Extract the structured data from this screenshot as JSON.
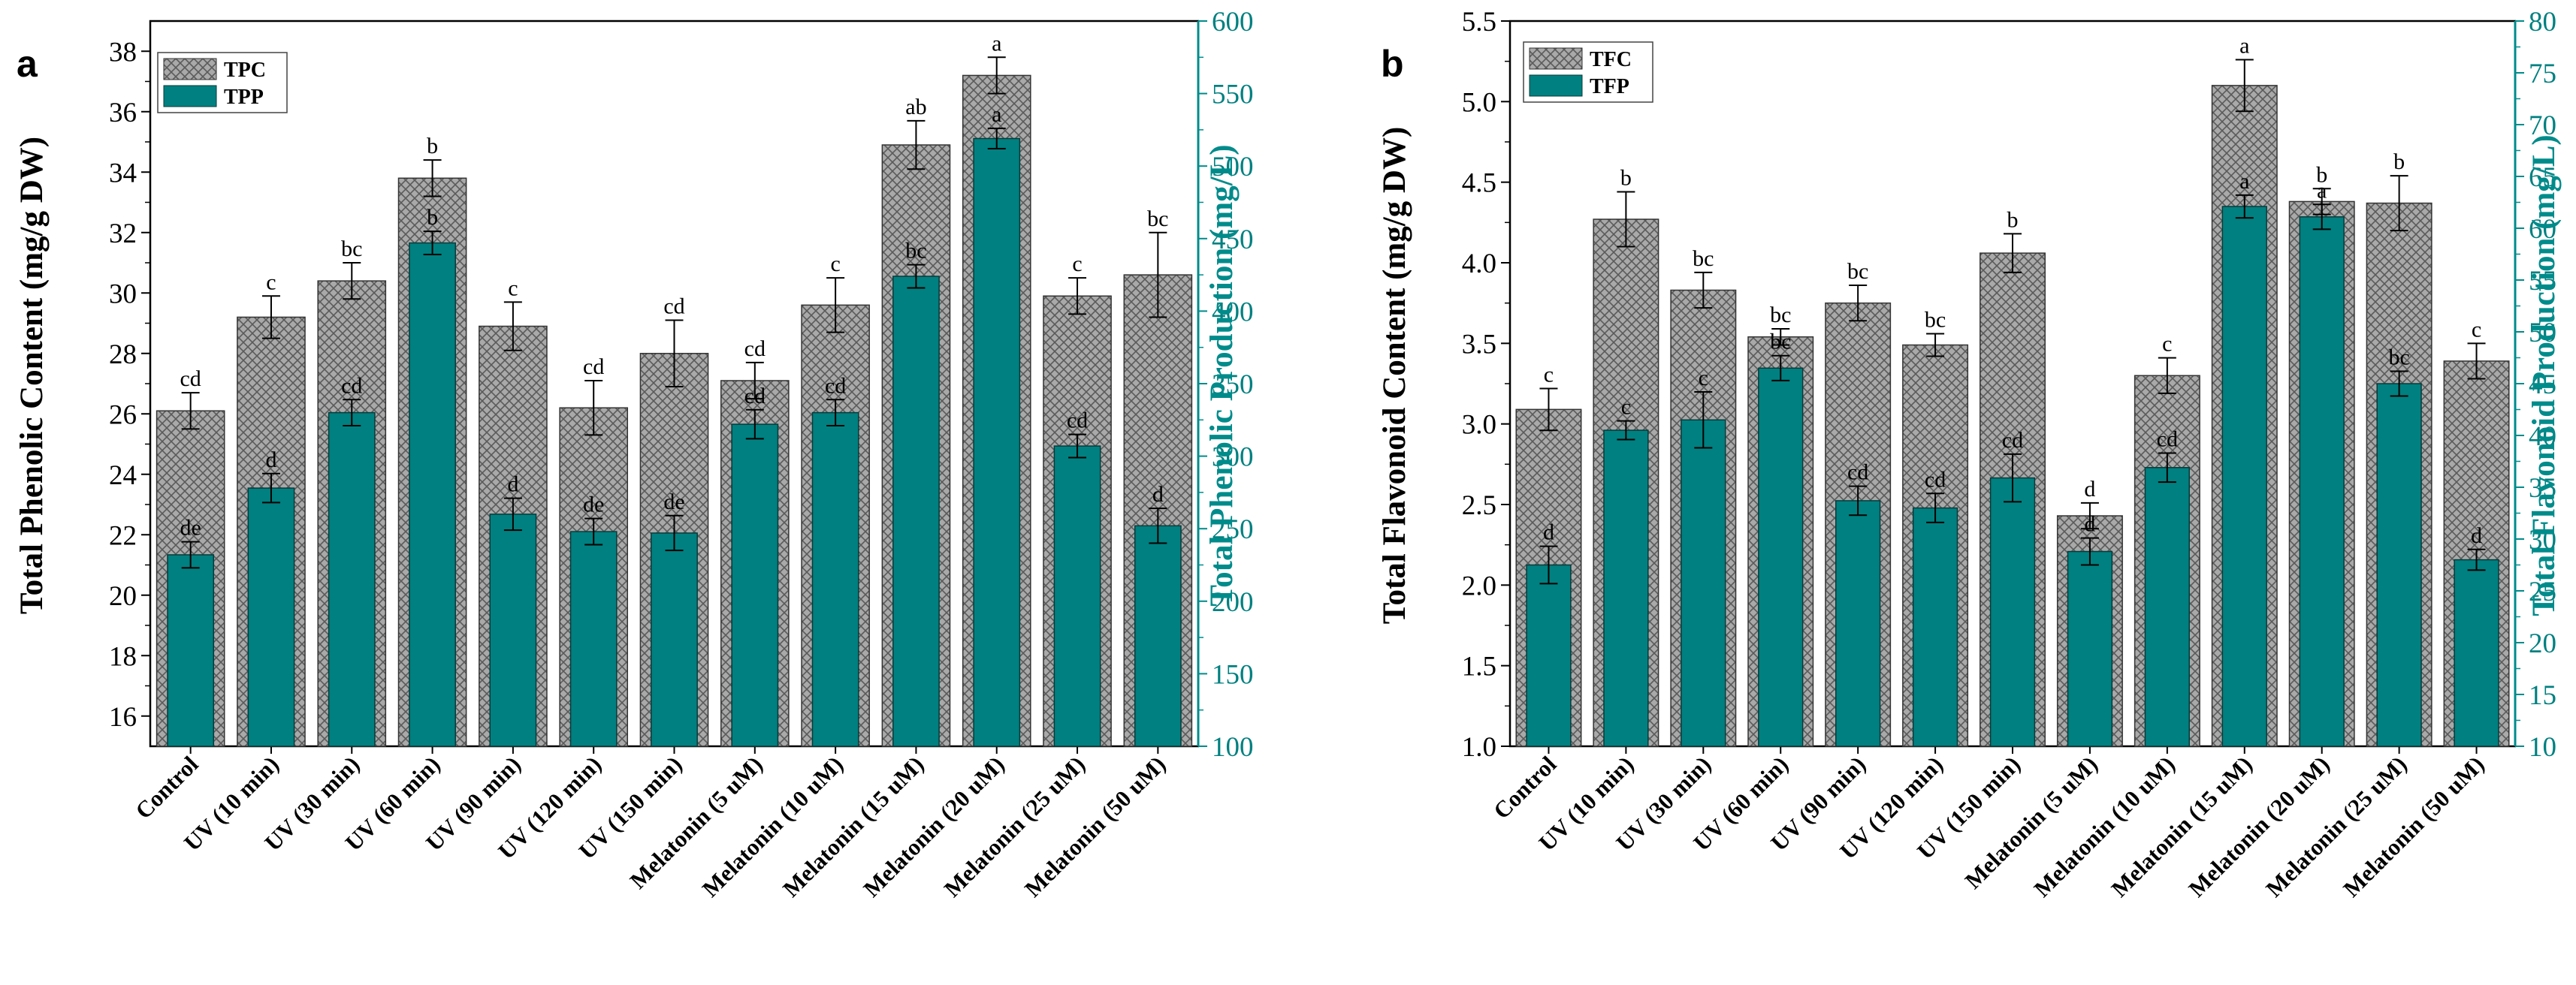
{
  "colors": {
    "hatch_bar": "#a9a9a9",
    "hatch_line": "#555555",
    "teal_bar": "#008080",
    "right_axis": "#008b8b",
    "axis": "#000000"
  },
  "chart_data": [
    {
      "type": "bar",
      "panel": "a",
      "categories": [
        "Control",
        "UV (10 min)",
        "UV (30 min)",
        "UV (60 min)",
        "UV (90 min)",
        "UV (120 min)",
        "UV (150 min)",
        "Melatonin (5 uM)",
        "Melatonin (10 uM)",
        "Melatonin (15 uM)",
        "Melatonin (20 uM)",
        "Melatonin (25 uM)",
        "Melatonin (50 uM)"
      ],
      "ylabel_left": "Total Phenolic Content (mg/g DW)",
      "ylabel_right": "Total Phenolic Production (mg/L)",
      "ylim_left": [
        15,
        39
      ],
      "ylim_right": [
        100,
        600
      ],
      "yticks_left": [
        16,
        18,
        20,
        22,
        24,
        26,
        28,
        30,
        32,
        34,
        36,
        38
      ],
      "yticks_right": [
        100,
        150,
        200,
        250,
        300,
        350,
        400,
        450,
        500,
        550,
        600
      ],
      "legend": [
        "TPC",
        "TPP"
      ],
      "series": [
        {
          "name": "TPC",
          "axis": "left",
          "style": "hatch",
          "values": [
            26.1,
            29.2,
            30.4,
            33.8,
            28.9,
            26.2,
            28.0,
            27.1,
            29.6,
            34.9,
            37.2,
            29.9,
            30.6
          ],
          "errors": [
            0.6,
            0.7,
            0.6,
            0.6,
            0.8,
            0.9,
            1.1,
            0.6,
            0.9,
            0.8,
            0.6,
            0.6,
            1.4
          ],
          "labels": [
            "cd",
            "c",
            "bc",
            "b",
            "c",
            "cd",
            "cd",
            "cd",
            "c",
            "ab",
            "a",
            "c",
            "bc"
          ]
        },
        {
          "name": "TPP",
          "axis": "right",
          "style": "solid",
          "values": [
            232,
            278,
            330,
            447,
            260,
            248,
            247,
            322,
            330,
            424,
            519,
            307,
            252
          ],
          "errors": [
            9,
            10,
            9,
            8,
            11,
            9,
            12,
            10,
            9,
            8,
            7,
            8,
            12
          ],
          "labels": [
            "de",
            "d",
            "cd",
            "b",
            "d",
            "de",
            "de",
            "cd",
            "cd",
            "bc",
            "a",
            "cd",
            "d"
          ]
        }
      ]
    },
    {
      "type": "bar",
      "panel": "b",
      "categories": [
        "Control",
        "UV (10 min)",
        "UV (30 min)",
        "UV (60 min)",
        "UV (90 min)",
        "UV (120 min)",
        "UV (150 min)",
        "Melatonin (5 uM)",
        "Melatonin (10 uM)",
        "Melatonin (15 uM)",
        "Melatonin (20 uM)",
        "Melatonin (25 uM)",
        "Melatonin (50 uM)"
      ],
      "ylabel_left": "Total Flavonoid Content (mg/g DW)",
      "ylabel_right": "Total Flavonoid Production (mg/L)",
      "ylim_left": [
        1.0,
        5.5
      ],
      "ylim_right": [
        10,
        80
      ],
      "yticks_left": [
        "1.0",
        "1.5",
        "2.0",
        "2.5",
        "3.0",
        "3.5",
        "4.0",
        "4.5",
        "5.0",
        "5.5"
      ],
      "yticks_right": [
        10,
        15,
        20,
        25,
        30,
        35,
        40,
        45,
        50,
        55,
        60,
        65,
        70,
        75,
        80
      ],
      "legend": [
        "TFC",
        "TFP"
      ],
      "series": [
        {
          "name": "TFC",
          "axis": "left",
          "style": "hatch",
          "values": [
            3.09,
            4.27,
            3.83,
            3.54,
            3.75,
            3.49,
            4.06,
            2.43,
            3.3,
            5.1,
            4.38,
            4.37,
            3.39
          ],
          "errors": [
            0.13,
            0.17,
            0.11,
            0.05,
            0.11,
            0.07,
            0.12,
            0.08,
            0.11,
            0.16,
            0.08,
            0.17,
            0.11
          ],
          "labels": [
            "c",
            "b",
            "bc",
            "bc",
            "bc",
            "bc",
            "b",
            "d",
            "c",
            "a",
            "b",
            "b",
            "c"
          ]
        },
        {
          "name": "TFP",
          "axis": "right",
          "style": "solid",
          "values": [
            27.5,
            40.5,
            41.5,
            46.5,
            33.7,
            33.0,
            35.9,
            28.8,
            36.9,
            62.1,
            61.1,
            45.0,
            28.0
          ],
          "errors": [
            1.8,
            0.9,
            2.7,
            1.2,
            1.4,
            1.4,
            2.3,
            1.3,
            1.4,
            1.1,
            1.2,
            1.2,
            1.0
          ],
          "labels": [
            "d",
            "c",
            "c",
            "bc",
            "cd",
            "cd",
            "cd",
            "d",
            "cd",
            "a",
            "a",
            "bc",
            "d"
          ]
        }
      ]
    }
  ]
}
